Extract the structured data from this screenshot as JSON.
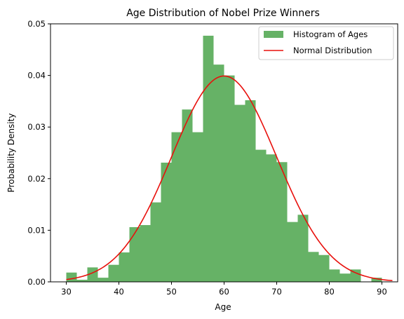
{
  "chart_data": {
    "type": "bar",
    "title": "Age Distribution of Nobel Prize Winners",
    "xlabel": "Age",
    "ylabel": "Probability Density",
    "xlim": [
      27.0,
      93.0
    ],
    "ylim": [
      0,
      0.05
    ],
    "xticks": [
      30,
      40,
      50,
      60,
      70,
      80,
      90
    ],
    "yticks": [
      0.0,
      0.01,
      0.02,
      0.03,
      0.04,
      0.05
    ],
    "ytick_labels": [
      "0.00",
      "0.01",
      "0.02",
      "0.03",
      "0.04",
      "0.05"
    ],
    "grid": false,
    "legend_position": "top-right",
    "histogram": {
      "name": "Histogram of Ages",
      "color": "#66b266",
      "bin_edges": [
        30,
        32,
        34,
        36,
        38,
        40,
        42,
        44,
        46,
        48,
        50,
        52,
        54,
        56,
        58,
        60,
        62,
        64,
        66,
        68,
        70,
        72,
        74,
        76,
        78,
        80,
        82,
        84,
        86,
        88,
        90,
        92
      ],
      "values": [
        0.0018,
        0.0004,
        0.0028,
        0.0008,
        0.0033,
        0.0057,
        0.0106,
        0.011,
        0.0154,
        0.0231,
        0.029,
        0.0334,
        0.029,
        0.0477,
        0.0421,
        0.04,
        0.0343,
        0.0352,
        0.0256,
        0.0247,
        0.0232,
        0.0116,
        0.013,
        0.0058,
        0.0052,
        0.0024,
        0.0016,
        0.0024,
        0.0,
        0.0008,
        0.0
      ]
    },
    "curve": {
      "name": "Normal Distribution",
      "color": "#e8100c",
      "mean": 60.0,
      "std": 10.0,
      "x_range": [
        30,
        92
      ]
    }
  }
}
